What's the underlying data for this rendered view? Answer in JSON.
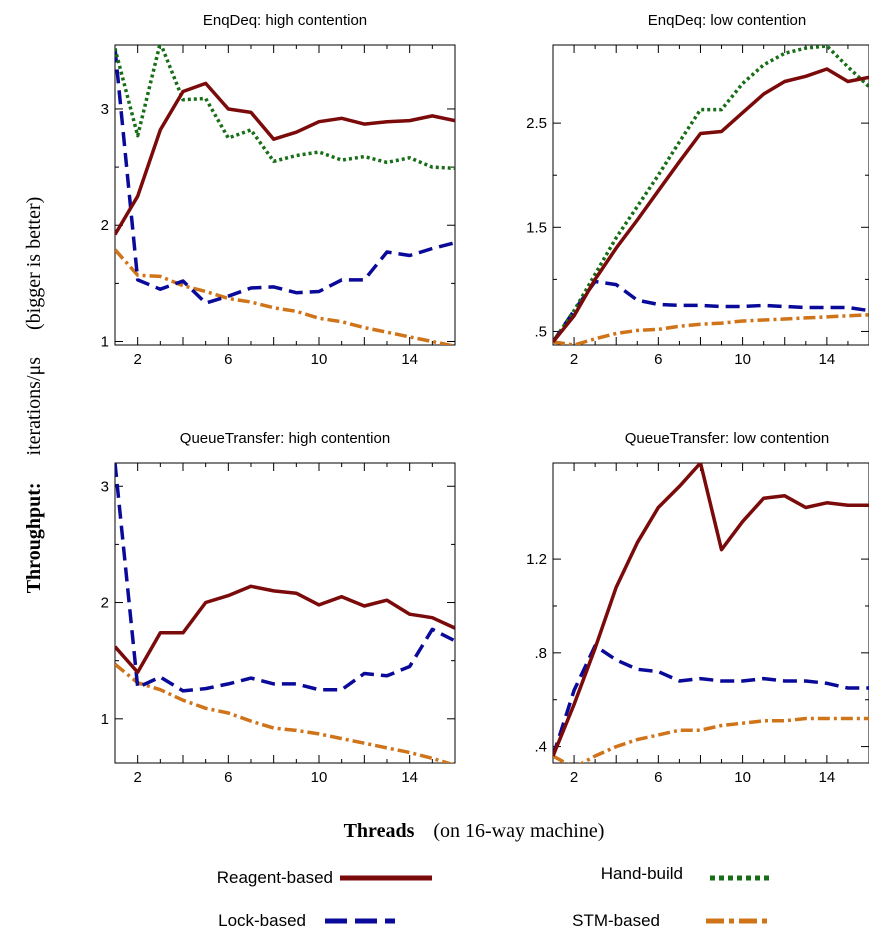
{
  "figure": {
    "ylabel_bold": "Throughput:",
    "ylabel_unit": "iterations/μs",
    "ylabel_note": "(bigger is better)",
    "xlabel_bold": "Threads",
    "xlabel_note": "(on 16-way machine)"
  },
  "legend": [
    {
      "name": "Reagent-based",
      "color": "#7b0a0a",
      "dash": "solid"
    },
    {
      "name": "Hand-build",
      "color": "#176e17",
      "dash": "dotted"
    },
    {
      "name": "Lock-based",
      "color": "#0a0a9a",
      "dash": "dashed"
    },
    {
      "name": "STM-based",
      "color": "#d0741a",
      "dash": "dashdot"
    }
  ],
  "chart_data": [
    {
      "type": "line",
      "title": "EnqDeq: high contention",
      "xlim": [
        1,
        16
      ],
      "ylim": [
        0.97,
        3.55
      ],
      "xticks": [
        2,
        6,
        10,
        14
      ],
      "xtick_labels": [
        "2",
        "6",
        "10",
        "14"
      ],
      "yticks": [
        1,
        2,
        3
      ],
      "ytick_labels": [
        "1",
        "2",
        "3"
      ],
      "x": [
        1,
        2,
        3,
        4,
        5,
        6,
        7,
        8,
        9,
        10,
        11,
        12,
        13,
        14,
        15,
        16
      ],
      "series": [
        {
          "name": "Reagent-based",
          "values": [
            1.92,
            2.25,
            2.82,
            3.15,
            3.22,
            3.0,
            2.97,
            2.74,
            2.8,
            2.89,
            2.92,
            2.87,
            2.89,
            2.9,
            2.94,
            2.9
          ]
        },
        {
          "name": "Hand-build",
          "values": [
            3.52,
            2.77,
            3.57,
            3.08,
            3.09,
            2.75,
            2.82,
            2.55,
            2.6,
            2.63,
            2.56,
            2.59,
            2.54,
            2.58,
            2.5,
            2.49
          ]
        },
        {
          "name": "Lock-based",
          "values": [
            3.52,
            1.53,
            1.45,
            1.52,
            1.33,
            1.39,
            1.46,
            1.47,
            1.42,
            1.43,
            1.53,
            1.53,
            1.77,
            1.74,
            1.8,
            1.85
          ]
        },
        {
          "name": "STM-based",
          "values": [
            1.79,
            1.57,
            1.56,
            1.48,
            1.43,
            1.37,
            1.34,
            1.29,
            1.26,
            1.2,
            1.17,
            1.12,
            1.08,
            1.04,
            1.0,
            0.96
          ]
        }
      ]
    },
    {
      "type": "line",
      "title": "EnqDeq: low contention",
      "xlim": [
        1,
        16
      ],
      "ylim": [
        0.37,
        3.25
      ],
      "xticks": [
        2,
        6,
        10,
        14
      ],
      "xtick_labels": [
        "2",
        "6",
        "10",
        "14"
      ],
      "yticks": [
        0.5,
        1.5,
        2.5
      ],
      "ytick_labels": [
        ".5",
        "1.5",
        "2.5"
      ],
      "x": [
        1,
        2,
        3,
        4,
        5,
        6,
        7,
        8,
        9,
        10,
        11,
        12,
        13,
        14,
        15,
        16
      ],
      "series": [
        {
          "name": "Reagent-based",
          "values": [
            0.4,
            0.65,
            1.0,
            1.3,
            1.57,
            1.85,
            2.13,
            2.4,
            2.42,
            2.6,
            2.78,
            2.9,
            2.95,
            3.02,
            2.9,
            2.94
          ]
        },
        {
          "name": "Hand-build",
          "values": [
            0.4,
            0.7,
            1.05,
            1.4,
            1.7,
            2.0,
            2.32,
            2.63,
            2.63,
            2.88,
            3.06,
            3.17,
            3.22,
            3.24,
            3.04,
            2.85
          ]
        },
        {
          "name": "Lock-based",
          "values": [
            0.4,
            0.7,
            0.98,
            0.95,
            0.8,
            0.76,
            0.75,
            0.75,
            0.74,
            0.74,
            0.75,
            0.74,
            0.73,
            0.73,
            0.73,
            0.7
          ]
        },
        {
          "name": "STM-based",
          "values": [
            0.4,
            0.37,
            0.43,
            0.48,
            0.51,
            0.52,
            0.55,
            0.57,
            0.58,
            0.6,
            0.61,
            0.62,
            0.63,
            0.64,
            0.65,
            0.66
          ]
        }
      ]
    },
    {
      "type": "line",
      "title": "QueueTransfer: high contention",
      "xlim": [
        1,
        16
      ],
      "ylim": [
        0.62,
        3.2
      ],
      "xticks": [
        2,
        6,
        10,
        14
      ],
      "xtick_labels": [
        "2",
        "6",
        "10",
        "14"
      ],
      "yticks": [
        1,
        2,
        3
      ],
      "ytick_labels": [
        "1",
        "2",
        "3"
      ],
      "x": [
        1,
        2,
        3,
        4,
        5,
        6,
        7,
        8,
        9,
        10,
        11,
        12,
        13,
        14,
        15,
        16
      ],
      "series": [
        {
          "name": "Reagent-based",
          "values": [
            1.62,
            1.4,
            1.74,
            1.74,
            2.0,
            2.06,
            2.14,
            2.1,
            2.08,
            1.98,
            2.05,
            1.97,
            2.02,
            1.9,
            1.87,
            1.78
          ]
        },
        {
          "name": "Lock-based",
          "values": [
            3.2,
            1.27,
            1.36,
            1.24,
            1.26,
            1.3,
            1.35,
            1.3,
            1.3,
            1.25,
            1.25,
            1.39,
            1.37,
            1.45,
            1.77,
            1.67
          ]
        },
        {
          "name": "STM-based",
          "values": [
            1.47,
            1.31,
            1.25,
            1.16,
            1.09,
            1.05,
            0.98,
            0.92,
            0.9,
            0.87,
            0.83,
            0.79,
            0.75,
            0.71,
            0.66,
            0.6
          ]
        }
      ]
    },
    {
      "type": "line",
      "title": "QueueTransfer: low contention",
      "xlim": [
        1,
        16
      ],
      "ylim": [
        0.33,
        1.61
      ],
      "xticks": [
        2,
        6,
        10,
        14
      ],
      "xtick_labels": [
        "2",
        "6",
        "10",
        "14"
      ],
      "yticks": [
        0.4,
        0.8,
        1.2
      ],
      "ytick_labels": [
        ".4",
        ".8",
        "1.2"
      ],
      "x": [
        1,
        2,
        3,
        4,
        5,
        6,
        7,
        8,
        9,
        10,
        11,
        12,
        13,
        14,
        15,
        16
      ],
      "series": [
        {
          "name": "Reagent-based",
          "values": [
            0.36,
            0.58,
            0.82,
            1.08,
            1.27,
            1.42,
            1.51,
            1.61,
            1.24,
            1.36,
            1.46,
            1.47,
            1.42,
            1.44,
            1.43,
            1.43
          ]
        },
        {
          "name": "Lock-based",
          "values": [
            0.36,
            0.64,
            0.83,
            0.77,
            0.73,
            0.72,
            0.68,
            0.69,
            0.68,
            0.68,
            0.69,
            0.68,
            0.68,
            0.67,
            0.65,
            0.65
          ]
        },
        {
          "name": "STM-based",
          "values": [
            0.36,
            0.31,
            0.36,
            0.4,
            0.43,
            0.45,
            0.47,
            0.47,
            0.49,
            0.5,
            0.51,
            0.51,
            0.52,
            0.52,
            0.52,
            0.52
          ]
        }
      ]
    }
  ]
}
